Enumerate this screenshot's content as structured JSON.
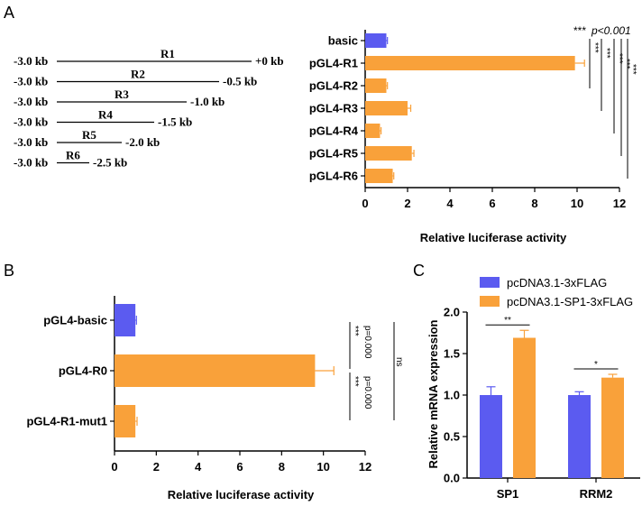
{
  "colors": {
    "blue": "#5B5BF0",
    "orange": "#F9A13A",
    "axis": "#000000"
  },
  "panels": {
    "a": "A",
    "b": "B",
    "c": "C"
  },
  "constructs": {
    "start_label": "-3.0 kb",
    "items": [
      {
        "name": "R1",
        "end_label": "+0 kb",
        "end_kb": 0.0
      },
      {
        "name": "R2",
        "end_label": "-0.5 kb",
        "end_kb": -0.5
      },
      {
        "name": "R3",
        "end_label": "-1.0 kb",
        "end_kb": -1.0
      },
      {
        "name": "R4",
        "end_label": "-1.5 kb",
        "end_kb": -1.5
      },
      {
        "name": "R5",
        "end_label": "-2.0 kb",
        "end_kb": -2.0
      },
      {
        "name": "R6",
        "end_label": "-2.5 kb",
        "end_kb": -2.5
      }
    ]
  },
  "chart_data": [
    {
      "id": "A",
      "type": "bar",
      "orientation": "horizontal",
      "categories": [
        "basic",
        "pGL4-R1",
        "pGL4-R2",
        "pGL4-R3",
        "pGL4-R4",
        "pGL4-R5",
        "pGL4-R6"
      ],
      "values": [
        1.0,
        9.9,
        1.0,
        2.0,
        0.7,
        2.2,
        1.3
      ],
      "errors": [
        0.05,
        0.45,
        0.05,
        0.15,
        0.05,
        0.1,
        0.05
      ],
      "bar_colors": [
        "blue",
        "orange",
        "orange",
        "orange",
        "orange",
        "orange",
        "orange"
      ],
      "xlabel": "Relative luciferase activity",
      "ticks": [
        0,
        2,
        4,
        6,
        8,
        10,
        12
      ],
      "xlim": [
        0,
        12
      ],
      "annotation_stars": "***",
      "annotation_p": "p<0.001",
      "significance": [
        "***",
        "***",
        "***",
        "***",
        "***"
      ]
    },
    {
      "id": "B",
      "type": "bar",
      "orientation": "horizontal",
      "categories": [
        "pGL4-basic",
        "pGL4-R0",
        "pGL4-R1-mut1"
      ],
      "values": [
        1.0,
        9.6,
        1.0
      ],
      "errors": [
        0.05,
        0.9,
        0.08
      ],
      "bar_colors": [
        "blue",
        "orange",
        "orange"
      ],
      "xlabel": "Relative luciferase activity",
      "ticks": [
        0,
        2,
        4,
        6,
        8,
        10,
        12
      ],
      "xlim": [
        0,
        12
      ],
      "comparisons": [
        {
          "stars": "***",
          "p": "p=0.000"
        },
        {
          "stars": "***",
          "p": "p=0.000"
        },
        {
          "stars": "ns"
        }
      ]
    },
    {
      "id": "C",
      "type": "bar",
      "orientation": "vertical",
      "categories": [
        "SP1",
        "RRM2"
      ],
      "series": [
        {
          "name": "pcDNA3.1-3xFLAG",
          "color": "blue",
          "values": [
            1.0,
            1.0
          ],
          "errors": [
            0.1,
            0.04
          ]
        },
        {
          "name": "pcDNA3.1-SP1-3xFLAG",
          "color": "orange",
          "values": [
            1.69,
            1.21
          ],
          "errors": [
            0.09,
            0.04
          ]
        }
      ],
      "ylabel": "Relative mRNA expression",
      "ticks": [
        "0.0",
        "0.5",
        "1.0",
        "1.5",
        "2.0"
      ],
      "ylim": [
        0,
        2.0
      ],
      "significance": [
        "**",
        "*"
      ]
    }
  ]
}
